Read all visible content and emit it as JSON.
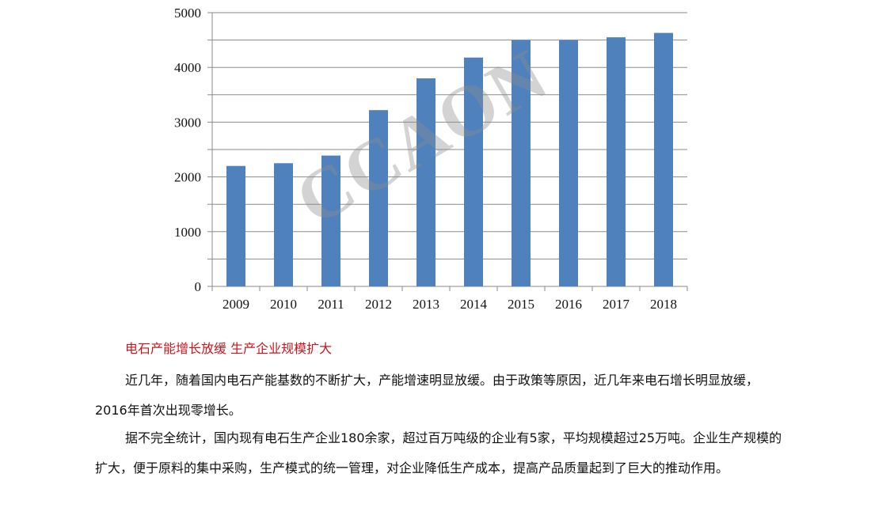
{
  "chart_data": {
    "type": "bar",
    "categories": [
      "2009",
      "2010",
      "2011",
      "2012",
      "2013",
      "2014",
      "2015",
      "2016",
      "2017",
      "2018"
    ],
    "values": [
      2200,
      2250,
      2390,
      3220,
      3800,
      4180,
      4500,
      4500,
      4550,
      4630
    ],
    "title": "",
    "xlabel": "",
    "ylabel": "",
    "ylim": [
      0,
      5000
    ],
    "yticks": [
      0,
      1000,
      2000,
      3000,
      4000,
      5000
    ],
    "grid": true,
    "bar_color": "#4f81bd",
    "watermark": "CCAON"
  },
  "article": {
    "heading": "电石产能增长放缓 生产企业规模扩大",
    "paragraphs": [
      "近几年，随着国内电石产能基数的不断扩大，产能增速明显放缓。由于政策等原因，近几年来电石增长明显放缓，2016年首次出现零增长。",
      "据不完全统计，国内现有电石生产企业180余家，超过百万吨级的企业有5家，平均规模超过25万吨。企业生产规模的扩大，便于原料的集中采购，生产模式的统一管理，对企业降低生产成本，提高产品质量起到了巨大的推动作用。"
    ]
  }
}
